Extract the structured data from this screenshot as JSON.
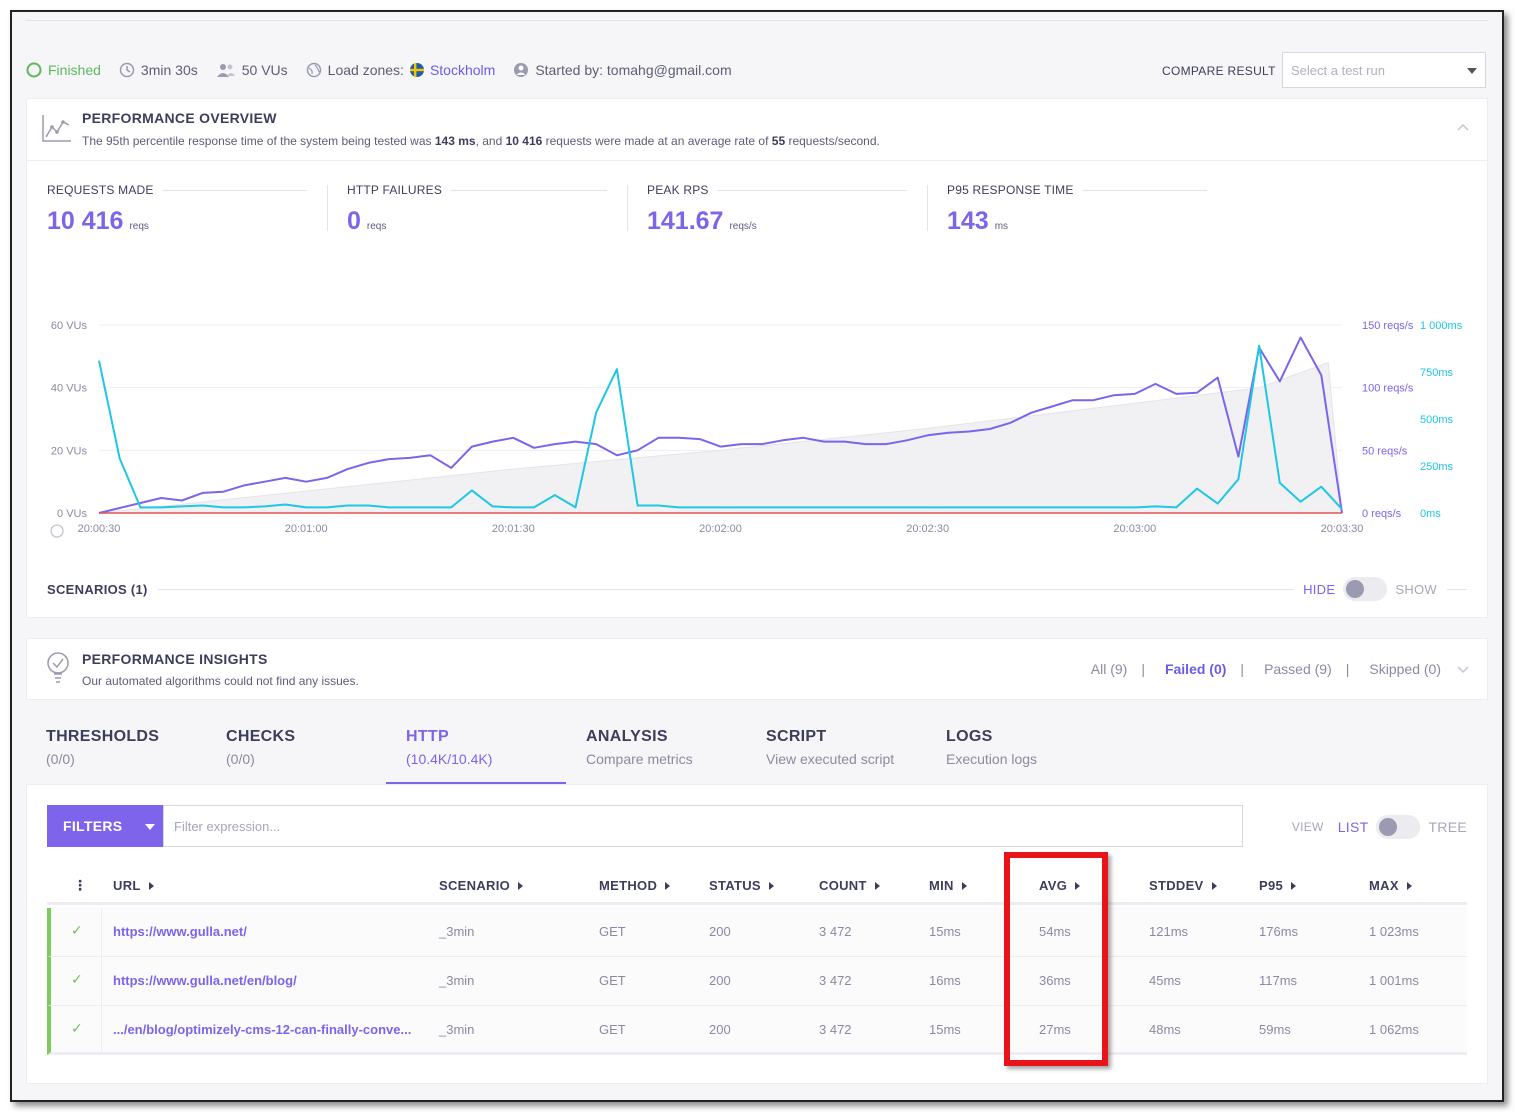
{
  "status": {
    "state": "Finished",
    "duration": "3min 30s",
    "vus": "50 VUs",
    "load_zones_label": "Load zones:",
    "load_zone": "Stockholm",
    "started_by": "Started by: tomahg@gmail.com"
  },
  "compare": {
    "label": "COMPARE RESULT",
    "placeholder": "Select a test run"
  },
  "overview": {
    "title": "PERFORMANCE OVERVIEW",
    "sub_prefix": "The 95th percentile response time of the system being tested was ",
    "sub_p95": "143 ms",
    "sub_mid": ", and ",
    "sub_requests": "10 416",
    "sub_mid2": " requests were made at an average rate of ",
    "sub_rate": "55",
    "sub_suffix": " requests/second."
  },
  "metrics": [
    {
      "label": "REQUESTS MADE",
      "value": "10 416",
      "unit": "reqs"
    },
    {
      "label": "HTTP FAILURES",
      "value": "0",
      "unit": "reqs"
    },
    {
      "label": "PEAK RPS",
      "value": "141.67",
      "unit": "reqs/s"
    },
    {
      "label": "P95 RESPONSE TIME",
      "value": "143",
      "unit": "ms"
    }
  ],
  "colors": {
    "accent": "#7d64ea",
    "rps_line": "#7d64ea",
    "response_line": "#1fc6e6",
    "vus_area": "#f1f1f4",
    "failures_line": "#e05555",
    "success": "#7dcb5c",
    "highlight_box": "#e8141a"
  },
  "chart_data": {
    "type": "line",
    "y_left": {
      "ticks": [
        "0 VUs",
        "20 VUs",
        "40 VUs",
        "60 VUs"
      ],
      "range": [
        0,
        60
      ]
    },
    "y_right_rps": {
      "ticks": [
        "0 reqs/s",
        "50 reqs/s",
        "100 reqs/s",
        "150 reqs/s"
      ],
      "range": [
        0,
        150
      ]
    },
    "y_right_ms": {
      "ticks": [
        "0ms",
        "250ms",
        "500ms",
        "750ms",
        "1 000ms"
      ],
      "range": [
        0,
        1000
      ]
    },
    "x_ticks": [
      "20:00:30",
      "20:01:00",
      "20:01:30",
      "20:02:00",
      "20:02:30",
      "20:03:00",
      "20:03:30"
    ],
    "x_range_seconds": [
      30,
      210
    ],
    "series": [
      {
        "key": "vus",
        "axis": "left",
        "x": [
          30,
          60,
          90,
          120,
          150,
          180,
          198,
          208,
          210
        ],
        "y": [
          0,
          7,
          14,
          20,
          27,
          35,
          40,
          48,
          0
        ]
      },
      {
        "key": "rps",
        "axis": "rps",
        "x": [
          30,
          33,
          36,
          39,
          42,
          45,
          48,
          51,
          54,
          57,
          60,
          63,
          66,
          69,
          72,
          75,
          78,
          81,
          84,
          87,
          90,
          93,
          96,
          99,
          102,
          105,
          108,
          111,
          114,
          117,
          120,
          123,
          126,
          129,
          132,
          135,
          138,
          141,
          144,
          147,
          150,
          153,
          156,
          159,
          162,
          165,
          168,
          171,
          174,
          177,
          180,
          183,
          186,
          189,
          192,
          195,
          198,
          201,
          204,
          207,
          210
        ],
        "y": [
          0,
          4,
          8,
          12,
          10,
          16,
          17,
          22,
          25,
          28,
          25,
          28,
          35,
          40,
          43,
          44,
          46,
          36,
          53,
          57,
          60,
          52,
          55,
          57,
          55,
          46,
          50,
          60,
          60,
          59,
          53,
          55,
          55,
          58,
          60,
          57,
          57,
          55,
          55,
          58,
          62,
          64,
          65,
          67,
          72,
          80,
          85,
          90,
          90,
          94,
          95,
          103,
          95,
          96,
          108,
          45,
          132,
          105,
          140,
          110,
          0
        ]
      },
      {
        "key": "response_time",
        "axis": "ms",
        "x": [
          30,
          33,
          36,
          39,
          42,
          45,
          48,
          51,
          54,
          57,
          60,
          63,
          66,
          69,
          72,
          75,
          78,
          81,
          84,
          87,
          90,
          93,
          96,
          99,
          102,
          105,
          108,
          111,
          114,
          117,
          120,
          123,
          126,
          129,
          132,
          135,
          138,
          141,
          144,
          147,
          150,
          153,
          156,
          159,
          162,
          165,
          168,
          171,
          174,
          177,
          180,
          183,
          186,
          189,
          192,
          195,
          198,
          201,
          204,
          207,
          210
        ],
        "y": [
          810,
          290,
          30,
          30,
          35,
          40,
          30,
          30,
          35,
          45,
          30,
          30,
          40,
          40,
          30,
          30,
          30,
          30,
          120,
          35,
          30,
          30,
          95,
          30,
          535,
          765,
          40,
          40,
          30,
          30,
          30,
          30,
          30,
          30,
          30,
          30,
          30,
          30,
          30,
          30,
          30,
          30,
          30,
          30,
          30,
          30,
          30,
          30,
          30,
          30,
          30,
          35,
          30,
          130,
          50,
          180,
          890,
          160,
          60,
          140,
          20
        ]
      },
      {
        "key": "http_failures",
        "axis": "rps",
        "x": [
          30,
          210
        ],
        "y": [
          0,
          0
        ]
      }
    ]
  },
  "scenarios": {
    "title": "SCENARIOS (1)",
    "hide": "HIDE",
    "show": "SHOW"
  },
  "insights": {
    "title": "PERFORMANCE INSIGHTS",
    "sub": "Our automated algorithms could not find any issues.",
    "filters": [
      "All (9)",
      "Failed (0)",
      "Passed (9)",
      "Skipped (0)"
    ],
    "active_filter": "Failed (0)"
  },
  "tabs": [
    {
      "title": "THRESHOLDS",
      "sub": "(0/0)"
    },
    {
      "title": "CHECKS",
      "sub": "(0/0)"
    },
    {
      "title": "HTTP",
      "sub": "(10.4K/10.4K)",
      "active": true
    },
    {
      "title": "ANALYSIS",
      "sub": "Compare metrics"
    },
    {
      "title": "SCRIPT",
      "sub": "View executed script"
    },
    {
      "title": "LOGS",
      "sub": "Execution logs"
    }
  ],
  "http": {
    "filters_label": "FILTERS",
    "filter_placeholder": "Filter expression...",
    "view_label": "VIEW",
    "list_label": "LIST",
    "tree_label": "TREE",
    "columns": [
      "URL",
      "SCENARIO",
      "METHOD",
      "STATUS",
      "COUNT",
      "MIN",
      "AVG",
      "STDDEV",
      "P95",
      "MAX"
    ],
    "rows": [
      {
        "url": "https://www.gulla.net/",
        "scenario": "_3min",
        "method": "GET",
        "status": "200",
        "count": "3 472",
        "min": "15ms",
        "avg": "54ms",
        "stddev": "121ms",
        "p95": "176ms",
        "max": "1 023ms"
      },
      {
        "url": "https://www.gulla.net/en/blog/",
        "scenario": "_3min",
        "method": "GET",
        "status": "200",
        "count": "3 472",
        "min": "16ms",
        "avg": "36ms",
        "stddev": "45ms",
        "p95": "117ms",
        "max": "1 001ms"
      },
      {
        "url": ".../en/blog/optimizely-cms-12-can-finally-conve...",
        "scenario": "_3min",
        "method": "GET",
        "status": "200",
        "count": "3 472",
        "min": "15ms",
        "avg": "27ms",
        "stddev": "48ms",
        "p95": "59ms",
        "max": "1 062ms"
      }
    ]
  }
}
